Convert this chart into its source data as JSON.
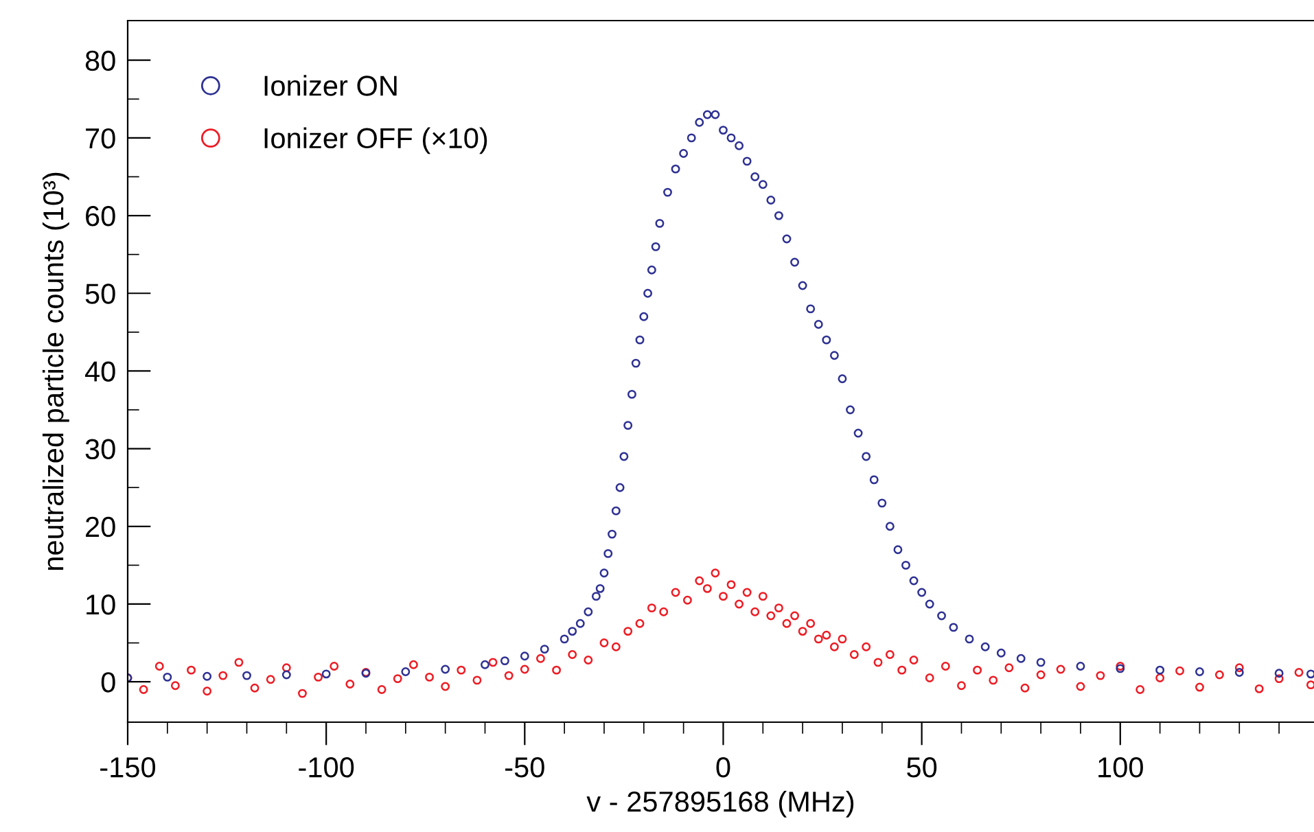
{
  "chart_data": {
    "type": "scatter",
    "xlabel": "v - 257895168 (MHz)",
    "ylabel": "neutralized particle counts (10³)",
    "xlim": [
      -150,
      148.8
    ],
    "ylim": [
      -5.2,
      85.1
    ],
    "xticks": [
      -150,
      {
        "value": -140,
        "label": null
      },
      {
        "value": -130,
        "label": null
      },
      {
        "value": -120,
        "label": null
      },
      {
        "value": -110,
        "label": null
      },
      -100,
      {
        "value": -90,
        "label": null
      },
      {
        "value": -80,
        "label": null
      },
      {
        "value": -70,
        "label": null
      },
      {
        "value": -60,
        "label": null
      },
      -50,
      {
        "value": -40,
        "label": null
      },
      {
        "value": -30,
        "label": null
      },
      {
        "value": -20,
        "label": null
      },
      {
        "value": -10,
        "label": null
      },
      0,
      {
        "value": 10,
        "label": null
      },
      {
        "value": 20,
        "label": null
      },
      {
        "value": 30,
        "label": null
      },
      {
        "value": 40,
        "label": null
      },
      50,
      {
        "value": 60,
        "label": null
      },
      {
        "value": 70,
        "label": null
      },
      {
        "value": 80,
        "label": null
      },
      {
        "value": 90,
        "label": null
      },
      100,
      {
        "value": 110,
        "label": null
      },
      {
        "value": 120,
        "label": null
      },
      {
        "value": 130,
        "label": null
      },
      {
        "value": 140,
        "label": null
      }
    ],
    "yticks": [
      0,
      {
        "value": 5,
        "label": null
      },
      10,
      {
        "value": 15,
        "label": null
      },
      20,
      {
        "value": 25,
        "label": null
      },
      30,
      {
        "value": 35,
        "label": null
      },
      40,
      {
        "value": 45,
        "label": null
      },
      50,
      {
        "value": 55,
        "label": null
      },
      60,
      {
        "value": 65,
        "label": null
      },
      70,
      {
        "value": 75,
        "label": null
      },
      80
    ],
    "marker": "circle",
    "grid": false,
    "legend": "top left",
    "series": [
      {
        "name": "Ionizer OFF (×10)",
        "color": "#ed1c24",
        "x": [
          -150,
          -146,
          -142,
          -138,
          -134,
          -130,
          -126,
          -122,
          -118,
          -114,
          -110,
          -106,
          -102,
          -98,
          -94,
          -90,
          -86,
          -82,
          -78,
          -74,
          -70,
          -66,
          -62,
          -58,
          -54,
          -50,
          -46,
          -42,
          -38,
          -34,
          -30,
          -27,
          -24,
          -21,
          -18,
          -15,
          -12,
          -9,
          -6,
          -4,
          -2,
          0,
          2,
          4,
          6,
          8,
          10,
          12,
          14,
          16,
          18,
          20,
          22,
          24,
          26,
          28,
          30,
          33,
          36,
          39,
          42,
          45,
          48,
          52,
          56,
          60,
          64,
          68,
          72,
          76,
          80,
          85,
          90,
          95,
          100,
          105,
          110,
          115,
          120,
          125,
          130,
          135,
          140,
          145,
          148
        ],
        "values": [
          0.5,
          -1,
          2,
          -0.5,
          1.5,
          -1.2,
          0.8,
          2.5,
          -0.8,
          0.3,
          1.8,
          -1.5,
          0.6,
          2,
          -0.3,
          1.2,
          -1,
          0.4,
          2.2,
          0.6,
          -0.6,
          1.5,
          0.2,
          2.5,
          0.8,
          1.6,
          3,
          1.5,
          3.5,
          2.8,
          5,
          4.5,
          6.5,
          7.5,
          9.5,
          9,
          11.5,
          10.5,
          13,
          12,
          14,
          11,
          12.5,
          10,
          11.5,
          9,
          11,
          8.5,
          9.5,
          7.5,
          8.5,
          6.5,
          7.5,
          5.5,
          6,
          4.5,
          5.5,
          3.5,
          4.5,
          2.5,
          3.5,
          1.5,
          2.8,
          0.5,
          2,
          -0.5,
          1.5,
          0.2,
          1.8,
          -0.8,
          0.9,
          1.6,
          -0.6,
          0.8,
          2,
          -1,
          0.5,
          1.4,
          -0.7,
          0.9,
          1.8,
          -0.9,
          0.4,
          1.2,
          -0.4
        ]
      },
      {
        "name": "Ionizer ON",
        "color": "#2e3192",
        "x": [
          -150,
          -140,
          -130,
          -120,
          -110,
          -100,
          -90,
          -80,
          -70,
          -60,
          -55,
          -50,
          -45,
          -40,
          -38,
          -36,
          -34,
          -32,
          -31,
          -30,
          -29,
          -28,
          -27,
          -26,
          -25,
          -24,
          -23,
          -22,
          -21,
          -20,
          -19,
          -18,
          -17,
          -16,
          -14,
          -12,
          -10,
          -8,
          -6,
          -4,
          -2,
          0,
          2,
          4,
          6,
          8,
          10,
          12,
          14,
          16,
          18,
          20,
          22,
          24,
          26,
          28,
          30,
          32,
          34,
          36,
          38,
          40,
          42,
          44,
          46,
          48,
          50,
          52,
          55,
          58,
          62,
          66,
          70,
          75,
          80,
          90,
          100,
          110,
          120,
          130,
          140,
          148
        ],
        "values": [
          0.5,
          0.6,
          0.7,
          0.8,
          0.9,
          1.0,
          1.1,
          1.3,
          1.6,
          2.2,
          2.7,
          3.3,
          4.2,
          5.5,
          6.5,
          7.5,
          9,
          11,
          12,
          14,
          16.5,
          19,
          22,
          25,
          29,
          33,
          37,
          41,
          44,
          47,
          50,
          53,
          56,
          59,
          63,
          66,
          68,
          70,
          72,
          73,
          73,
          71,
          70,
          69,
          67,
          65,
          64,
          62,
          60,
          57,
          54,
          51,
          48,
          46,
          44,
          42,
          39,
          35,
          32,
          29,
          26,
          23,
          20,
          17,
          15,
          13,
          11.5,
          10,
          8.5,
          7,
          5.5,
          4.5,
          3.7,
          3,
          2.5,
          2,
          1.7,
          1.5,
          1.3,
          1.2,
          1.1,
          1.0
        ]
      }
    ]
  }
}
